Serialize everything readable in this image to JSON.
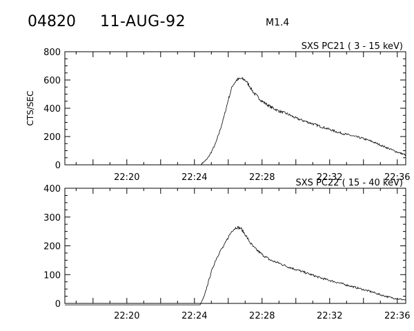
{
  "header": {
    "event_id": "04820",
    "date": "11-AUG-92",
    "flare_class": "M1.4"
  },
  "chart_data": [
    {
      "type": "line",
      "title": "SXS PC21  (  3 - 15 keV)",
      "xlabel": "",
      "ylabel": "CTS/SEC",
      "xlim": [
        "22:16:20",
        "22:36:30"
      ],
      "ylim": [
        0,
        800
      ],
      "x_ticks": [
        "22:20",
        "22:24",
        "22:28",
        "22:32",
        "22:36"
      ],
      "y_ticks": [
        0,
        200,
        400,
        600,
        800
      ],
      "data_start": "22:24:24",
      "series": [
        {
          "x": [
            "22:24:24",
            "22:24:45",
            "22:25:00",
            "22:25:15",
            "22:25:30",
            "22:25:45",
            "22:26:00",
            "22:26:15",
            "22:26:30",
            "22:26:45",
            "22:27:00",
            "22:27:15",
            "22:27:30",
            "22:28:00",
            "22:28:30",
            "22:29:00",
            "22:29:30",
            "22:30:00",
            "22:30:30",
            "22:31:00",
            "22:31:30",
            "22:32:00",
            "22:32:30",
            "22:33:00",
            "22:33:30",
            "22:34:00",
            "22:34:30",
            "22:35:00",
            "22:35:30",
            "22:36:00",
            "22:36:30"
          ],
          "values": [
            5,
            40,
            90,
            150,
            240,
            340,
            460,
            560,
            600,
            610,
            600,
            560,
            510,
            450,
            410,
            380,
            360,
            330,
            310,
            290,
            270,
            250,
            230,
            215,
            200,
            185,
            165,
            140,
            115,
            90,
            70
          ]
        }
      ]
    },
    {
      "type": "line",
      "title": "SXS PC22  ( 15 - 40 keV)",
      "xlabel": "",
      "ylabel": "",
      "xlim": [
        "22:16:20",
        "22:36:30"
      ],
      "ylim": [
        0,
        400
      ],
      "x_ticks": [
        "22:20",
        "22:24",
        "22:28",
        "22:32",
        "22:36"
      ],
      "y_ticks": [
        0,
        100,
        200,
        300,
        400
      ],
      "series": [
        {
          "x": [
            "22:16:20",
            "22:19:00",
            "22:24:20",
            "22:24:35",
            "22:24:45",
            "22:25:00",
            "22:25:15",
            "22:25:30",
            "22:25:45",
            "22:26:00",
            "22:26:15",
            "22:26:30",
            "22:26:45",
            "22:27:00",
            "22:27:15",
            "22:27:30",
            "22:28:00",
            "22:28:30",
            "22:29:00",
            "22:29:30",
            "22:30:00",
            "22:30:30",
            "22:31:00",
            "22:31:30",
            "22:32:00",
            "22:32:30",
            "22:33:00",
            "22:33:30",
            "22:34:00",
            "22:34:30",
            "22:35:00",
            "22:35:30",
            "22:36:00",
            "22:36:30"
          ],
          "values": [
            -5,
            -5,
            -5,
            25,
            60,
            110,
            150,
            180,
            200,
            230,
            255,
            265,
            260,
            240,
            215,
            195,
            170,
            150,
            140,
            128,
            118,
            108,
            98,
            88,
            80,
            72,
            64,
            56,
            48,
            40,
            30,
            22,
            16,
            12
          ]
        }
      ]
    }
  ]
}
